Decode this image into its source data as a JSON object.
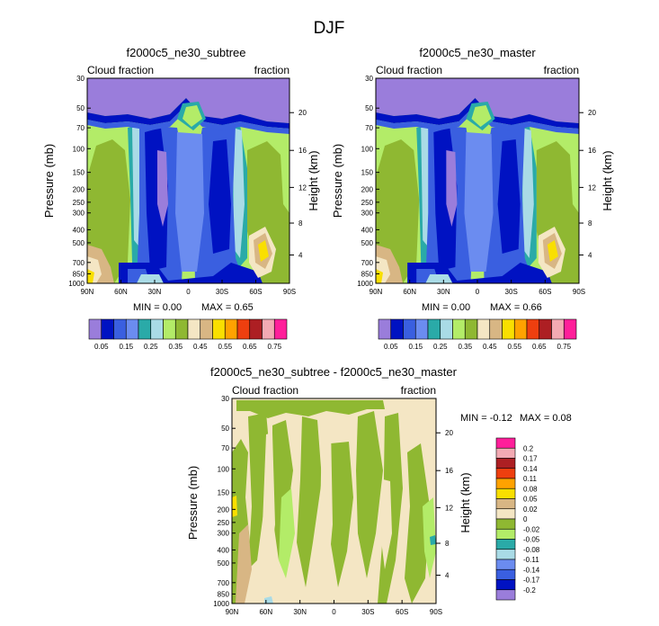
{
  "suptitle": "DJF",
  "colors": {
    "c1": "#9a7ddb",
    "c2": "#0012c2",
    "c3": "#3a5fe0",
    "c4": "#6b8cf0",
    "c5": "#2aaaa8",
    "c6": "#a9dbe6",
    "c7": "#b3ec68",
    "c8": "#8fb832",
    "c9": "#f4e6c4",
    "c10": "#d8b684",
    "c11": "#f9df00",
    "c12": "#ffa200",
    "c13": "#ee3f0f",
    "c14": "#ad1f23",
    "c15": "#f3aab3",
    "c16": "#ff1f9a",
    "dc1": "#9a7ddb",
    "dc2": "#0012c2",
    "dc3": "#3a5fe0",
    "dc4": "#6b8cf0",
    "dc5": "#a9dbe6",
    "dc6": "#2aaaa8",
    "dc7": "#b3ec68",
    "dc8": "#8fb832",
    "dc9": "#f4e6c4",
    "dc10": "#d8b684",
    "dc11": "#f9df00",
    "dc12": "#ffa200",
    "dc13": "#ee3f0f",
    "dc14": "#ad1f23",
    "dc15": "#f3aab3",
    "dc16": "#ff1f9a"
  },
  "chart_data": [
    {
      "type": "heatmap",
      "title": "f2000c5_ne30_subtree",
      "left_label": "Cloud fraction",
      "right_label": "fraction",
      "ylabel": "Pressure (mb)",
      "ylabel_right": "Height (km)",
      "x_ticks": [
        "90N",
        "60N",
        "30N",
        "0",
        "30S",
        "60S",
        "90S"
      ],
      "y_ticks": [
        "30",
        "50",
        "70",
        "100",
        "150",
        "200",
        "250",
        "300",
        "400",
        "500",
        "700",
        "850",
        "1000"
      ],
      "y_ticks_right": [
        "20",
        "16",
        "12",
        "8",
        "4"
      ],
      "min_label": "MIN =   0.00",
      "max_label": "MAX =   0.65",
      "contour_levels": [
        0.05,
        0.1,
        0.15,
        0.2,
        0.25,
        0.3,
        0.35,
        0.4,
        0.45,
        0.5,
        0.55,
        0.6,
        0.65,
        0.7,
        0.75
      ],
      "colorbar_labels": [
        "0.05",
        "0.15",
        "0.25",
        "0.35",
        "0.45",
        "0.55",
        "0.65",
        "0.75"
      ]
    },
    {
      "type": "heatmap",
      "title": "f2000c5_ne30_master",
      "left_label": "Cloud fraction",
      "right_label": "fraction",
      "ylabel": "Pressure (mb)",
      "ylabel_right": "Height (km)",
      "x_ticks": [
        "90N",
        "60N",
        "30N",
        "0",
        "30S",
        "60S",
        "90S"
      ],
      "y_ticks": [
        "30",
        "50",
        "70",
        "100",
        "150",
        "200",
        "250",
        "300",
        "400",
        "500",
        "700",
        "850",
        "1000"
      ],
      "y_ticks_right": [
        "20",
        "16",
        "12",
        "8",
        "4"
      ],
      "min_label": "MIN =   0.00",
      "max_label": "MAX =   0.66",
      "contour_levels": [
        0.05,
        0.1,
        0.15,
        0.2,
        0.25,
        0.3,
        0.35,
        0.4,
        0.45,
        0.5,
        0.55,
        0.6,
        0.65,
        0.7,
        0.75
      ],
      "colorbar_labels": [
        "0.05",
        "0.15",
        "0.25",
        "0.35",
        "0.45",
        "0.55",
        "0.65",
        "0.75"
      ]
    },
    {
      "type": "heatmap",
      "title": "f2000c5_ne30_subtree - f2000c5_ne30_master",
      "left_label": "Cloud fraction",
      "right_label": "fraction",
      "ylabel": "Pressure (mb)",
      "ylabel_right": "Height (km)",
      "x_ticks": [
        "90N",
        "60N",
        "30N",
        "0",
        "30S",
        "60S",
        "90S"
      ],
      "y_ticks": [
        "30",
        "50",
        "70",
        "100",
        "150",
        "200",
        "250",
        "300",
        "400",
        "500",
        "700",
        "850",
        "1000"
      ],
      "y_ticks_right": [
        "20",
        "16",
        "12",
        "8",
        "4"
      ],
      "min_label": "MIN =  -0.12",
      "max_label": "MAX =   0.08",
      "contour_levels": [
        -0.2,
        -0.17,
        -0.14,
        -0.11,
        -0.08,
        -0.05,
        -0.02,
        0,
        0.02,
        0.05,
        0.08,
        0.11,
        0.14,
        0.17,
        0.2
      ],
      "colorbar_labels": [
        "0.2",
        "0.17",
        "0.14",
        "0.11",
        "0.08",
        "0.05",
        "0.02",
        "0",
        "-0.02",
        "-0.05",
        "-0.08",
        "-0.11",
        "-0.14",
        "-0.17",
        "-0.2"
      ]
    }
  ]
}
